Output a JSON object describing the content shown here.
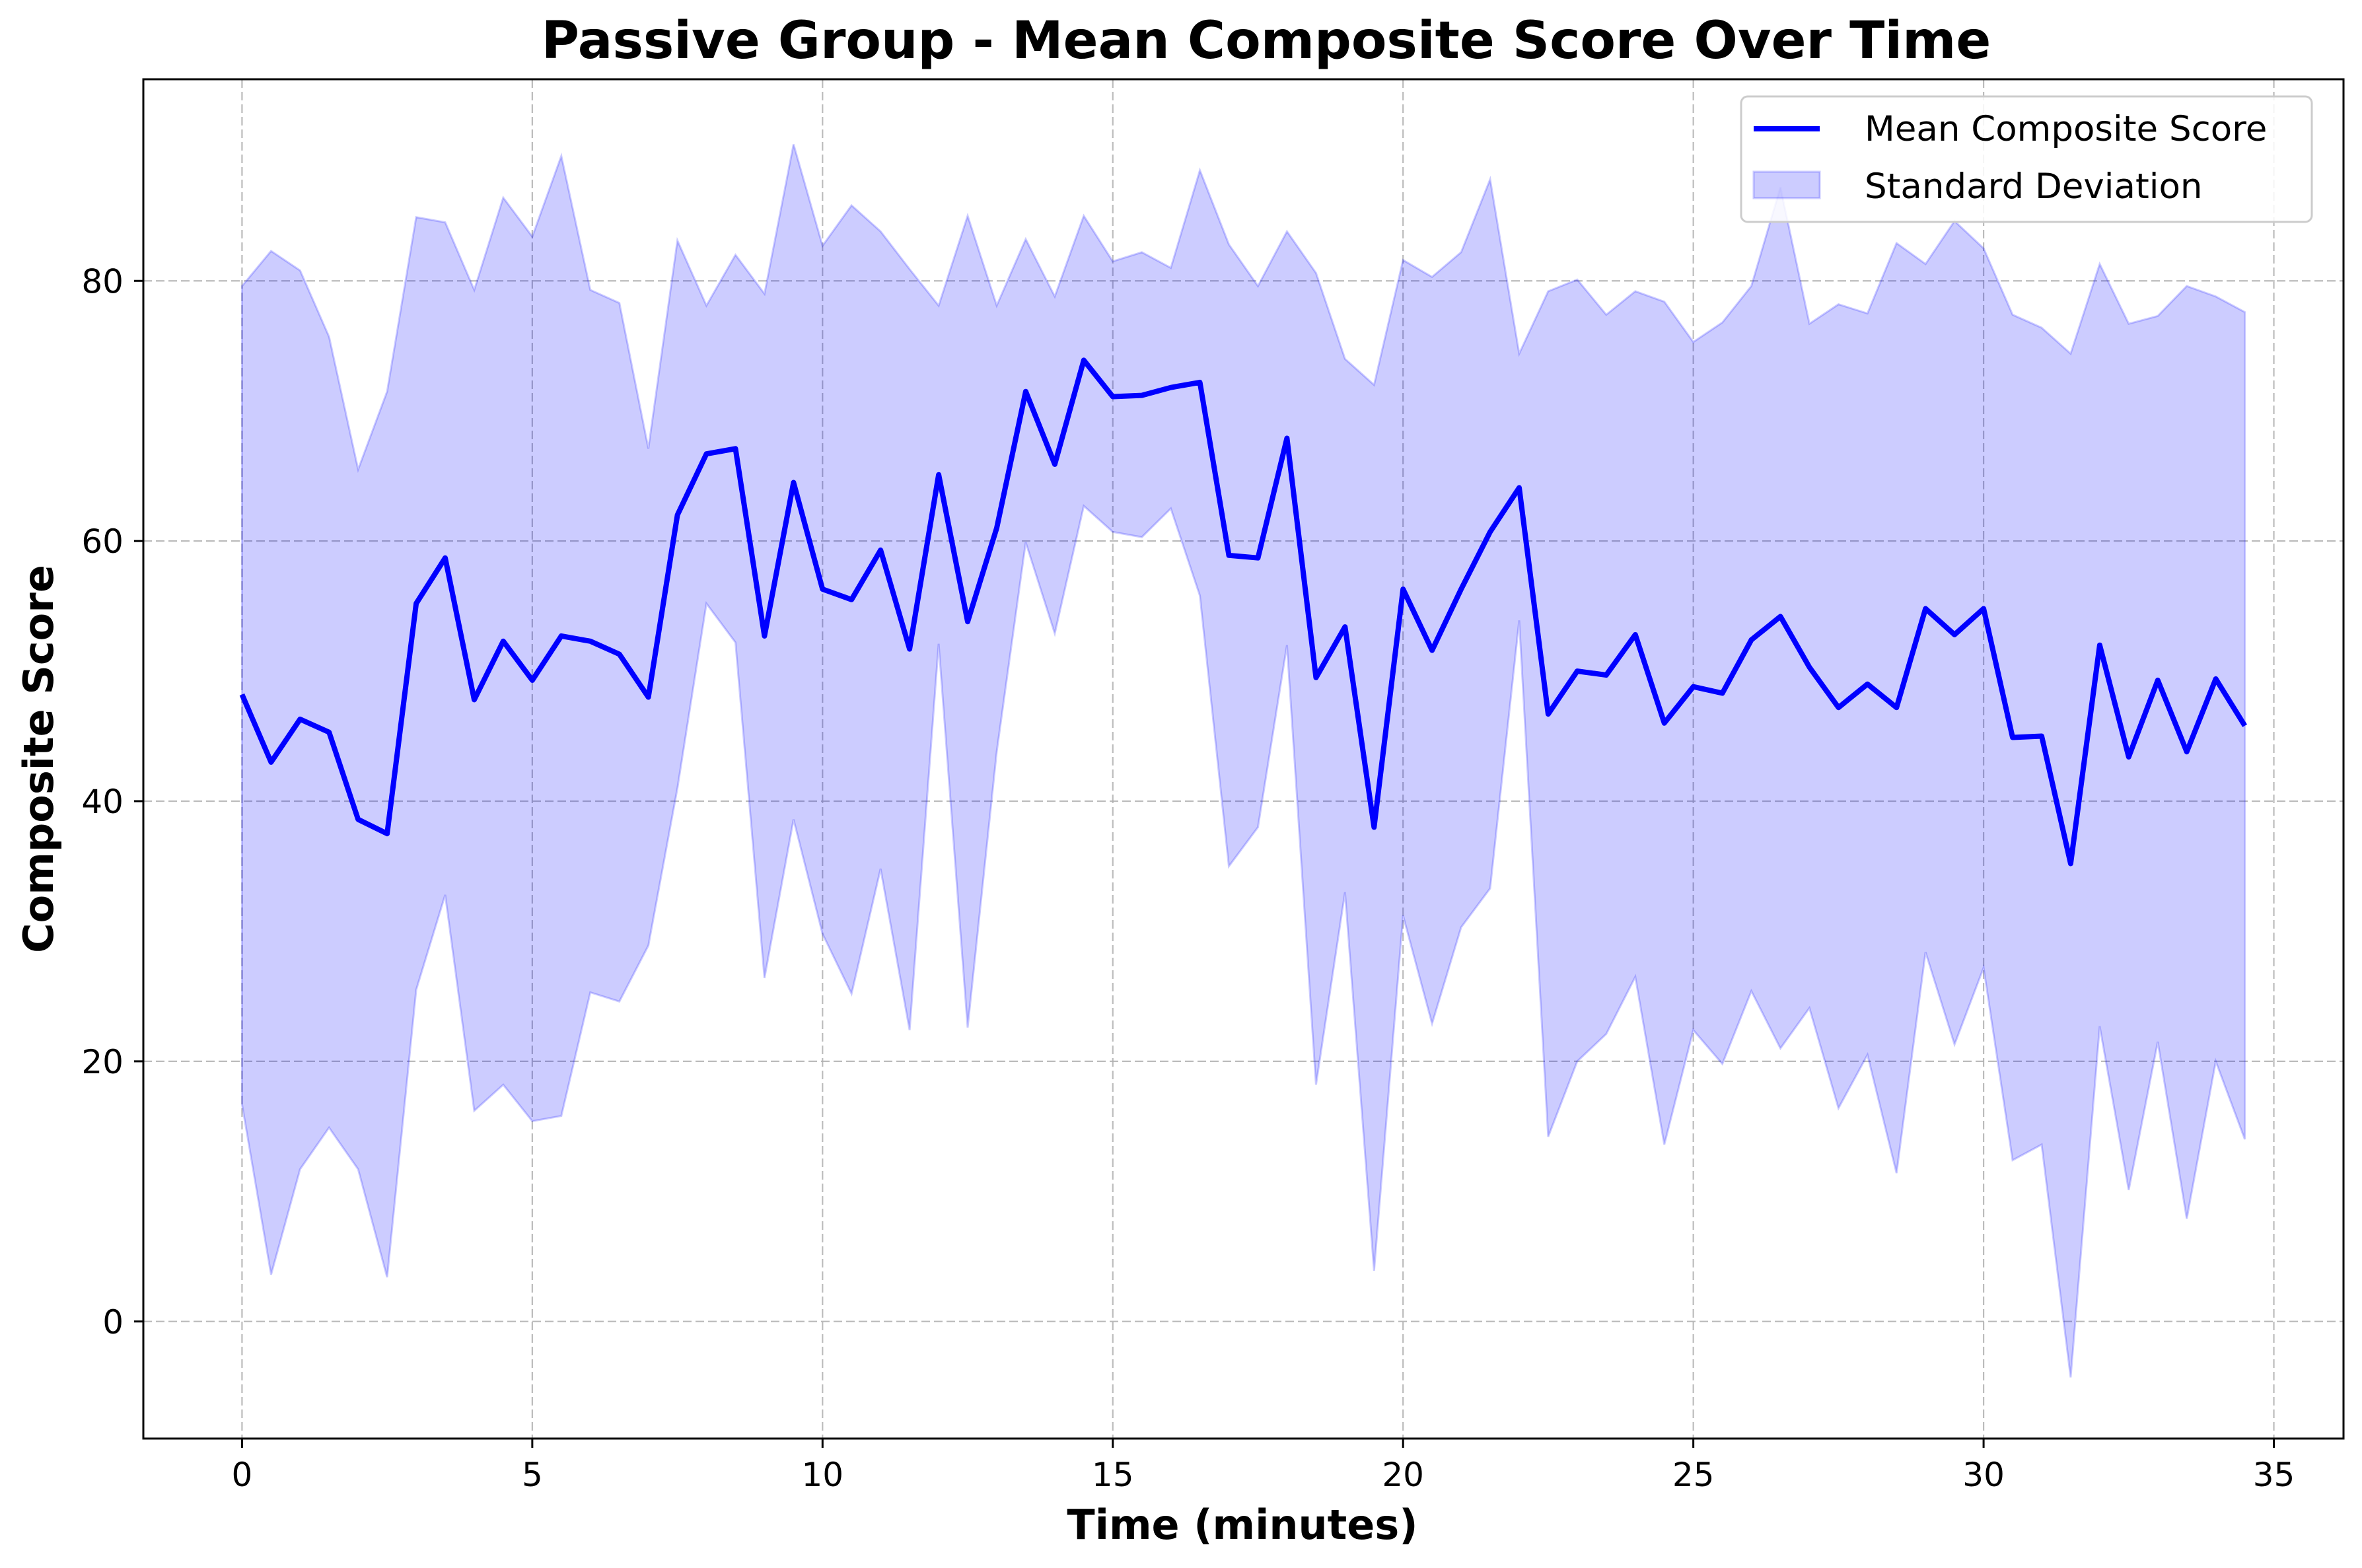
{
  "chart_data": {
    "type": "line",
    "title": "Passive Group - Mean Composite Score Over Time",
    "xlabel": "Time (minutes)",
    "ylabel": "Composite Score",
    "xlim": [
      -1.7,
      36.2
    ],
    "ylim": [
      -9,
      95.5
    ],
    "xticks": [
      0,
      5,
      10,
      15,
      20,
      25,
      30,
      35
    ],
    "yticks": [
      0,
      20,
      40,
      60,
      80
    ],
    "grid": true,
    "legend_position": "top-right",
    "x": [
      0,
      0.5,
      1,
      1.5,
      2,
      2.5,
      3,
      3.5,
      4,
      4.5,
      5,
      5.5,
      6,
      6.5,
      7,
      7.5,
      8,
      8.5,
      9,
      9.5,
      10,
      10.5,
      11,
      11.5,
      12,
      12.5,
      13,
      13.5,
      14,
      14.5,
      15,
      15.5,
      16,
      16.5,
      17,
      17.5,
      18,
      18.5,
      19,
      19.5,
      20,
      20.5,
      21,
      21.5,
      22,
      22.5,
      23,
      23.5,
      24,
      24.5,
      25,
      25.5,
      26,
      26.5,
      27,
      27.5,
      28,
      28.5,
      29,
      29.5,
      30,
      30.5,
      31,
      31.5,
      32,
      32.5,
      33,
      33.5,
      34,
      34.5
    ],
    "series": [
      {
        "name": "Mean Composite Score",
        "kind": "line",
        "color": "#0000ff",
        "values": [
          48.2,
          43.0,
          46.3,
          45.3,
          38.6,
          37.5,
          55.2,
          58.7,
          47.8,
          52.3,
          49.3,
          52.7,
          52.3,
          51.3,
          48.0,
          62.0,
          66.7,
          67.1,
          52.7,
          64.5,
          56.3,
          55.5,
          59.3,
          51.7,
          65.1,
          53.8,
          61.0,
          71.5,
          65.9,
          73.9,
          71.1,
          71.2,
          71.8,
          72.2,
          58.9,
          58.7,
          67.9,
          49.5,
          53.4,
          38.0,
          56.3,
          51.6,
          56.3,
          60.7,
          64.1,
          46.7,
          50.0,
          49.7,
          52.8,
          46.0,
          48.8,
          48.3,
          52.4,
          54.2,
          50.3,
          47.2,
          49.0,
          47.2,
          54.8,
          52.8,
          54.8,
          44.9,
          45.0,
          35.2,
          52.0,
          43.4,
          49.3,
          43.8,
          49.4,
          45.8
        ]
      },
      {
        "name": "Standard Deviation",
        "kind": "band",
        "color": "#0000ff",
        "upper": [
          79.6,
          82.3,
          80.8,
          75.7,
          65.5,
          71.5,
          84.9,
          84.5,
          79.3,
          86.4,
          83.4,
          89.6,
          79.3,
          78.3,
          67.1,
          83.1,
          78.1,
          82.0,
          79.0,
          90.5,
          82.7,
          85.8,
          83.8,
          80.9,
          78.1,
          85.0,
          78.1,
          83.2,
          78.8,
          85.0,
          81.5,
          82.2,
          81.0,
          88.5,
          82.8,
          79.6,
          83.8,
          80.6,
          74.0,
          72.0,
          81.6,
          80.3,
          82.2,
          87.8,
          74.4,
          79.2,
          80.1,
          77.4,
          79.2,
          78.4,
          75.3,
          76.8,
          79.6,
          87.2,
          76.7,
          78.2,
          77.5,
          82.9,
          81.3,
          84.6,
          82.5,
          77.4,
          76.4,
          74.4,
          81.3,
          76.7,
          77.3,
          79.6,
          78.8,
          77.6
        ],
        "lower": [
          16.7,
          3.6,
          11.7,
          14.9,
          11.7,
          3.4,
          25.5,
          32.8,
          16.2,
          18.2,
          15.4,
          15.8,
          25.3,
          24.6,
          28.9,
          41.0,
          55.2,
          52.2,
          26.4,
          38.6,
          29.8,
          25.2,
          34.8,
          22.4,
          52.1,
          22.6,
          43.8,
          59.9,
          52.9,
          62.7,
          60.7,
          60.3,
          62.5,
          55.8,
          35.0,
          38.0,
          52.0,
          18.2,
          33.0,
          3.9,
          31.2,
          22.9,
          30.3,
          33.3,
          53.9,
          14.2,
          20.0,
          22.1,
          26.5,
          13.6,
          22.4,
          19.8,
          25.4,
          21.0,
          24.1,
          16.4,
          20.5,
          11.4,
          28.4,
          21.3,
          27.2,
          12.4,
          13.6,
          -4.3,
          22.7,
          10.1,
          21.5,
          7.9,
          20.0,
          14.0
        ]
      }
    ]
  }
}
